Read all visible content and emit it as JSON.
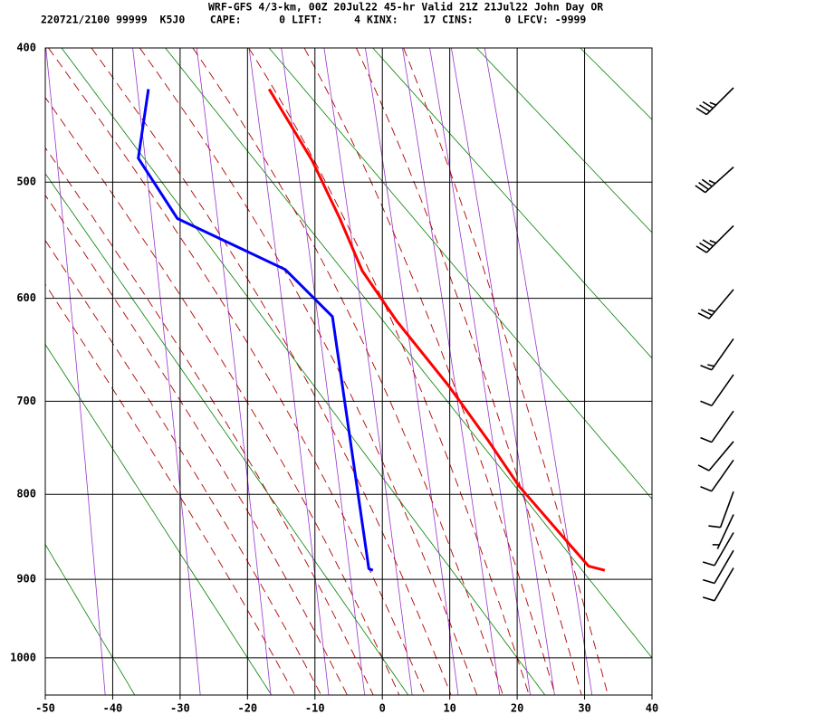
{
  "chart_data": {
    "type": "sounding",
    "title": "WRF-GFS 4/3-km, 00Z 20Jul22 45-hr Valid 21Z 21Jul22 John Day OR",
    "subtitle": "220721/2100 99999  K5J0    CAPE:      0 LIFT:     4 KINX:    17 CINS:     0 LFCV: -9999",
    "xlim": [
      -50,
      40
    ],
    "xticks": [
      -50,
      -40,
      -30,
      -20,
      -10,
      0,
      10,
      20,
      30,
      40
    ],
    "ylim": [
      400,
      1050
    ],
    "yticks": [
      400,
      500,
      600,
      700,
      800,
      900,
      1000
    ],
    "grid": true,
    "grid_color": "#000000",
    "series": [
      {
        "color": "#ff0000",
        "x": [
          33.0,
          30.6,
          27.9,
          20.3,
          15.8,
          9.8,
          2.1,
          -3.0,
          -6.3,
          -10.4,
          -16.8
        ],
        "values": [
          889,
          884,
          859,
          791,
          742,
          684,
          621,
          575,
          530,
          483,
          429
        ]
      },
      {
        "color": "#0000ff",
        "x": [
          -1.4,
          -2.0,
          -7.4,
          -14.4,
          -30.4,
          -36.2,
          -34.7
        ],
        "values": [
          889,
          887,
          617,
          574,
          530,
          481,
          429
        ]
      }
    ],
    "dry_adiabats": {
      "color": "#008000",
      "values": [
        -40,
        -20,
        0,
        20,
        40,
        60,
        80,
        100,
        120
      ]
    },
    "moist_adiabats": {
      "color": "#b00000",
      "values": [
        -16,
        -12,
        -8,
        -4,
        0,
        4,
        8,
        12,
        16,
        20,
        24,
        28,
        32
      ]
    },
    "mixing_ratios": {
      "color": "#9933cc",
      "values": [
        0.1,
        0.4,
        1,
        2,
        3,
        5,
        8,
        12,
        16,
        20,
        28
      ]
    },
    "wind": {
      "color": "#000000",
      "pressure": [
        428,
        488,
        536,
        592,
        638,
        673,
        710,
        742,
        762,
        797,
        823,
        844,
        865,
        886
      ],
      "direction": [
        225,
        228,
        225,
        220,
        215,
        215,
        215,
        220,
        215,
        200,
        205,
        210,
        210,
        210
      ],
      "speed": [
        35,
        35,
        35,
        25,
        15,
        10,
        10,
        10,
        10,
        10,
        5,
        10,
        10,
        10
      ]
    }
  }
}
